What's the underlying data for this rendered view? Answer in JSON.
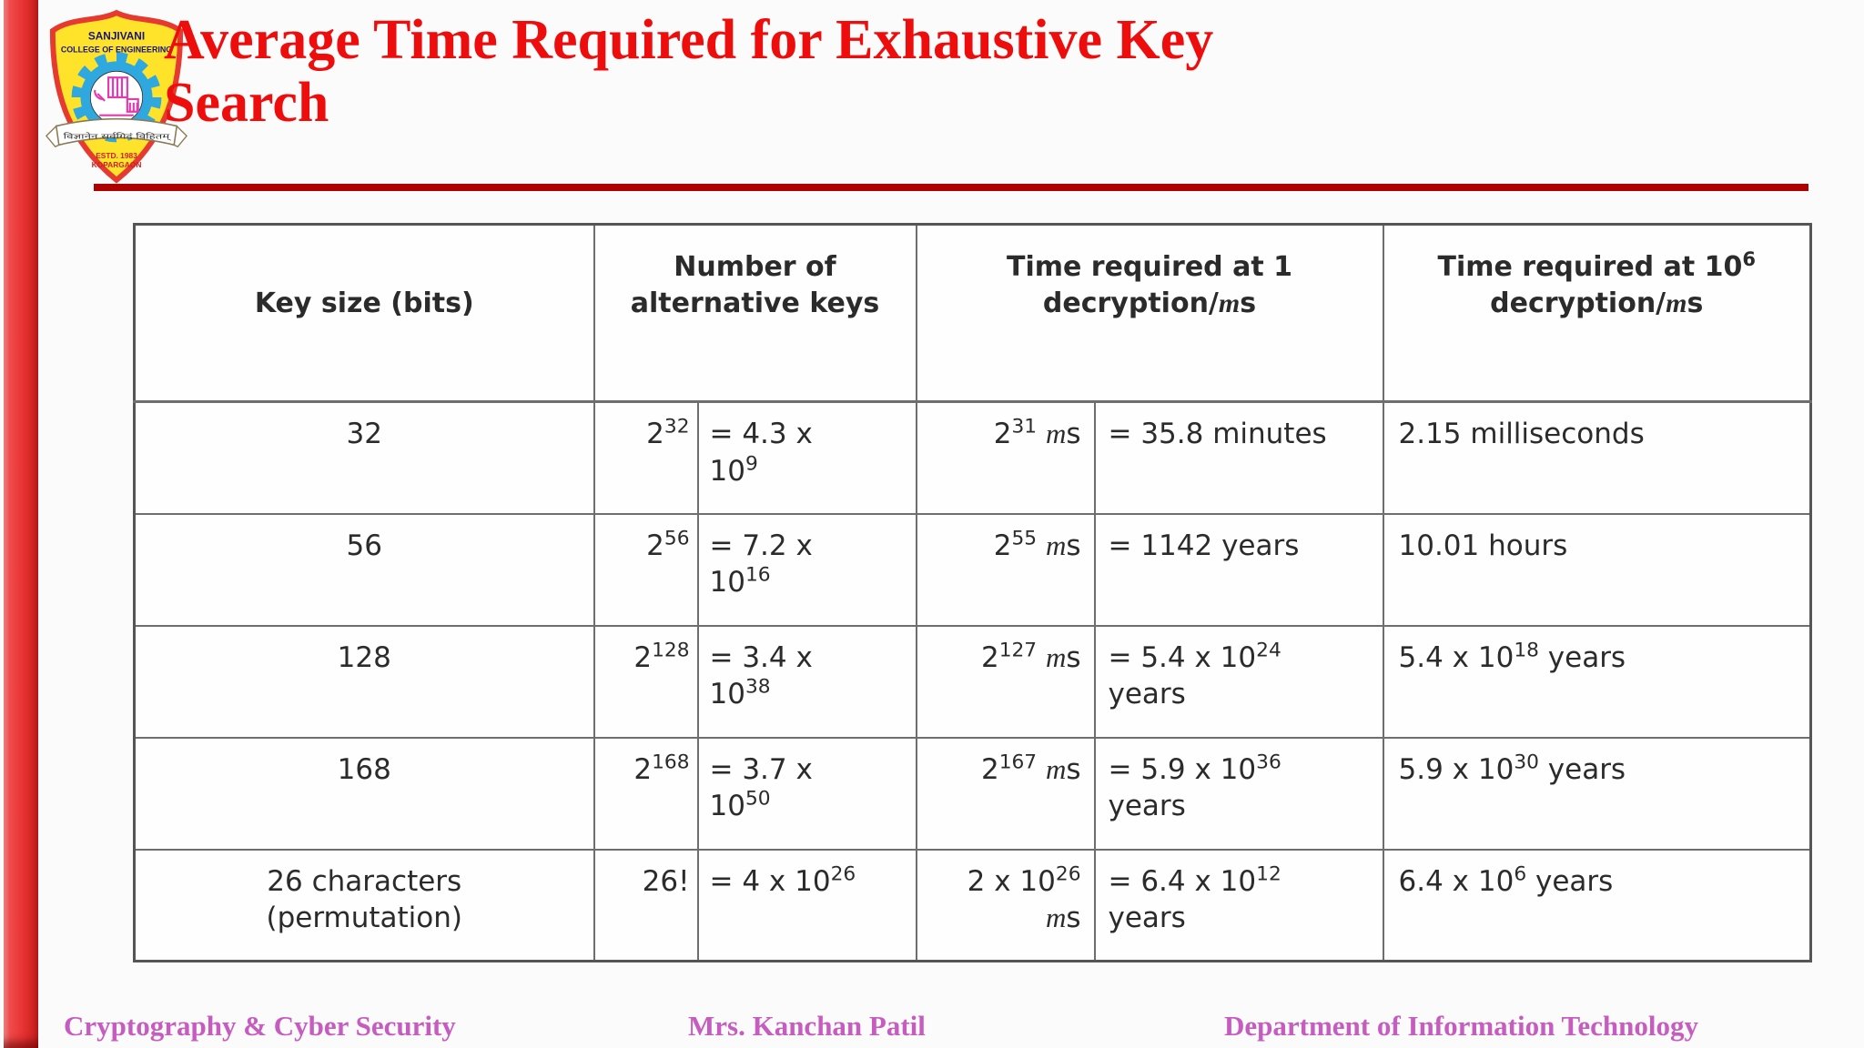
{
  "slide": {
    "title": "Average Time Required for Exhaustive Key Search"
  },
  "logo": {
    "line1": "SANJIVANI",
    "line2": "COLLEGE OF ENGINEERING",
    "motto": "विज्ञानेन सर्वगिदं विहितम्",
    "estd": "ESTD. 1983",
    "place": "KOPARGAON"
  },
  "table": {
    "headers": [
      [
        {
          "t": "Key size (bits)"
        }
      ],
      [
        {
          "t": "Number of"
        },
        {
          "br": true
        },
        {
          "t": "alternative keys"
        }
      ],
      [
        {
          "t": "Time required at 1"
        },
        {
          "br": true
        },
        {
          "t": "decryption/"
        },
        {
          "i": "m"
        },
        {
          "t": "s"
        }
      ],
      [
        {
          "t": "Time required at 10"
        },
        {
          "s": "6"
        },
        {
          "br": true
        },
        {
          "t": "decryption/"
        },
        {
          "i": "m"
        },
        {
          "t": "s"
        }
      ]
    ],
    "rows": [
      {
        "cells": [
          [
            {
              "t": "32"
            }
          ],
          [
            {
              "t": "2"
            },
            {
              "s": "32"
            }
          ],
          [
            {
              "t": "= 4.3 x"
            },
            {
              "br": true
            },
            {
              "t": "10"
            },
            {
              "s": "9"
            }
          ],
          [
            {
              "t": "2"
            },
            {
              "s": "31"
            },
            {
              "t": " "
            },
            {
              "i": "m"
            },
            {
              "t": "s"
            }
          ],
          [
            {
              "t": "= 35.8 minutes"
            }
          ],
          [
            {
              "t": "2.15 milliseconds"
            }
          ]
        ]
      },
      {
        "cells": [
          [
            {
              "t": "56"
            }
          ],
          [
            {
              "t": "2"
            },
            {
              "s": "56"
            }
          ],
          [
            {
              "t": "= 7.2 x"
            },
            {
              "br": true
            },
            {
              "t": "10"
            },
            {
              "s": "16"
            }
          ],
          [
            {
              "t": "2"
            },
            {
              "s": "55"
            },
            {
              "t": " "
            },
            {
              "i": "m"
            },
            {
              "t": "s"
            }
          ],
          [
            {
              "t": "= 1142 years"
            }
          ],
          [
            {
              "t": "10.01 hours"
            }
          ]
        ]
      },
      {
        "cells": [
          [
            {
              "t": "128"
            }
          ],
          [
            {
              "t": "2"
            },
            {
              "s": "128"
            }
          ],
          [
            {
              "t": "= 3.4 x"
            },
            {
              "br": true
            },
            {
              "t": "10"
            },
            {
              "s": "38"
            }
          ],
          [
            {
              "t": "2"
            },
            {
              "s": "127"
            },
            {
              "t": " "
            },
            {
              "i": "m"
            },
            {
              "t": "s"
            }
          ],
          [
            {
              "t": "= 5.4 x 10"
            },
            {
              "s": "24"
            },
            {
              "br": true
            },
            {
              "t": "years"
            }
          ],
          [
            {
              "t": "5.4 x 10"
            },
            {
              "s": "18"
            },
            {
              "t": " years"
            }
          ]
        ]
      },
      {
        "cells": [
          [
            {
              "t": "168"
            }
          ],
          [
            {
              "t": "2"
            },
            {
              "s": "168"
            }
          ],
          [
            {
              "t": "= 3.7 x"
            },
            {
              "br": true
            },
            {
              "t": "10"
            },
            {
              "s": "50"
            }
          ],
          [
            {
              "t": "2"
            },
            {
              "s": "167"
            },
            {
              "t": " "
            },
            {
              "i": "m"
            },
            {
              "t": "s"
            }
          ],
          [
            {
              "t": "= 5.9 x 10"
            },
            {
              "s": "36"
            },
            {
              "br": true
            },
            {
              "t": "years"
            }
          ],
          [
            {
              "t": "5.9 x 10"
            },
            {
              "s": "30"
            },
            {
              "t": " years"
            }
          ]
        ]
      },
      {
        "cells": [
          [
            {
              "t": "26 characters"
            },
            {
              "br": true
            },
            {
              "t": "(permutation)"
            }
          ],
          [
            {
              "t": "26!"
            }
          ],
          [
            {
              "t": "= 4 x 10"
            },
            {
              "s": "26"
            }
          ],
          [
            {
              "t": "2 x 10"
            },
            {
              "s": "26"
            },
            {
              "br": true
            },
            {
              "i": "m"
            },
            {
              "t": "s"
            }
          ],
          [
            {
              "t": "= 6.4 x 10"
            },
            {
              "s": "12"
            },
            {
              "br": true
            },
            {
              "t": "years"
            }
          ],
          [
            {
              "t": "6.4 x 10"
            },
            {
              "s": "6"
            },
            {
              "t": " years"
            }
          ]
        ]
      }
    ],
    "rows_plain": [
      [
        "32",
        "2^32",
        "= 4.3 x 10^9",
        "2^31 ms",
        "= 35.8 minutes",
        "2.15 milliseconds"
      ],
      [
        "56",
        "2^56",
        "= 7.2 x 10^16",
        "2^55 ms",
        "= 1142 years",
        "10.01 hours"
      ],
      [
        "128",
        "2^128",
        "= 3.4 x 10^38",
        "2^127 ms",
        "= 5.4 x 10^24 years",
        "5.4 x 10^18 years"
      ],
      [
        "168",
        "2^168",
        "= 3.7 x 10^50",
        "2^167 ms",
        "= 5.9 x 10^36 years",
        "5.9 x 10^30 years"
      ],
      [
        "26 characters (permutation)",
        "26!",
        "= 4 x 10^26",
        "2 x 10^26 ms",
        "= 6.4 x 10^12 years",
        "6.4 x 10^6 years"
      ]
    ]
  },
  "footer": {
    "left": "Cryptography & Cyber Security",
    "center": "Mrs. Kanchan Patil",
    "right": "Department of Information Technology"
  },
  "colors": {
    "title-red": "#ee0d0d",
    "rule-red": "#ad0303",
    "footer-magenta": "#c65cc0",
    "table-border": "#6e6e6e",
    "table-outer": "#555555",
    "table-text": "#2b2b2b",
    "bar-red": "#e93333",
    "logo-yellow": "#ffe32b",
    "logo-red": "#e6392f",
    "logo-blue": "#2fa8e0",
    "logo-pink": "#e23bb0",
    "logo-navy": "#15157a"
  }
}
